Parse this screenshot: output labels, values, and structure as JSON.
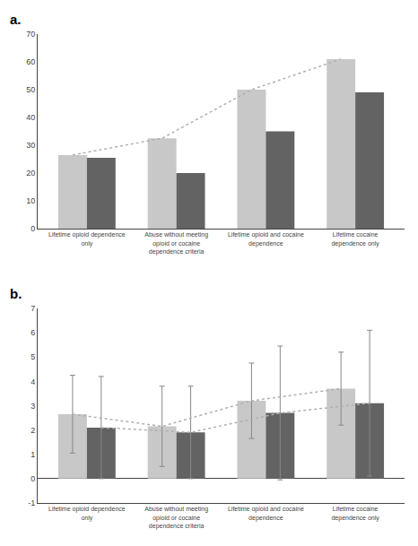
{
  "chart_data": [
    {
      "type": "bar",
      "title": "a.",
      "categories": [
        "Lifetime opioid dependence\nonly",
        "Abuse without meeting\nopioid or cocaine\ndependence criteria",
        "Lifetime opioid and cocaine\ndependence",
        "Lifetime cocaine\ndependence only"
      ],
      "series": [
        {
          "type": "bar",
          "color": "#c8c8c8",
          "values": [
            26.5,
            32.5,
            50.0,
            61.0
          ]
        },
        {
          "type": "bar",
          "color": "#636363",
          "values": [
            25.5,
            20.0,
            35.0,
            49.0
          ]
        },
        {
          "type": "line",
          "color": "#b0b0b0",
          "line_style": "dotted",
          "values": [
            26.5,
            32.5,
            50.0,
            61.0
          ]
        }
      ],
      "ylim": [
        0,
        70
      ],
      "yticks": [
        0,
        10,
        20,
        30,
        40,
        50,
        60,
        70
      ],
      "grid": false
    },
    {
      "type": "bar",
      "title": "b.",
      "categories": [
        "Lifetime opioid dependence\nonly",
        "Abuse without meeting\nopioid or cocaine\ndependence criteria",
        "Lifetime opioid and cocaine\ndependence",
        "Lifetime cocaine\ndependence only"
      ],
      "series": [
        {
          "type": "bar",
          "color": "#c8c8c8",
          "values": [
            2.65,
            2.15,
            3.2,
            3.7
          ],
          "errors": [
            1.6,
            1.65,
            1.55,
            1.5
          ]
        },
        {
          "type": "bar",
          "color": "#636363",
          "values": [
            2.1,
            1.9,
            2.7,
            3.1
          ],
          "errors": [
            2.1,
            1.9,
            2.75,
            3.0
          ]
        },
        {
          "type": "line",
          "color": "#b0b0b0",
          "line_style": "dotted",
          "values": [
            2.65,
            2.15,
            3.2,
            3.7
          ]
        },
        {
          "type": "line",
          "color": "#b0b0b0",
          "line_style": "dotted",
          "values": [
            2.1,
            1.9,
            2.7,
            3.1
          ]
        }
      ],
      "ylim": [
        -1,
        7
      ],
      "yticks": [
        -1,
        0,
        1,
        2,
        3,
        4,
        5,
        6,
        7
      ],
      "grid": false
    }
  ]
}
